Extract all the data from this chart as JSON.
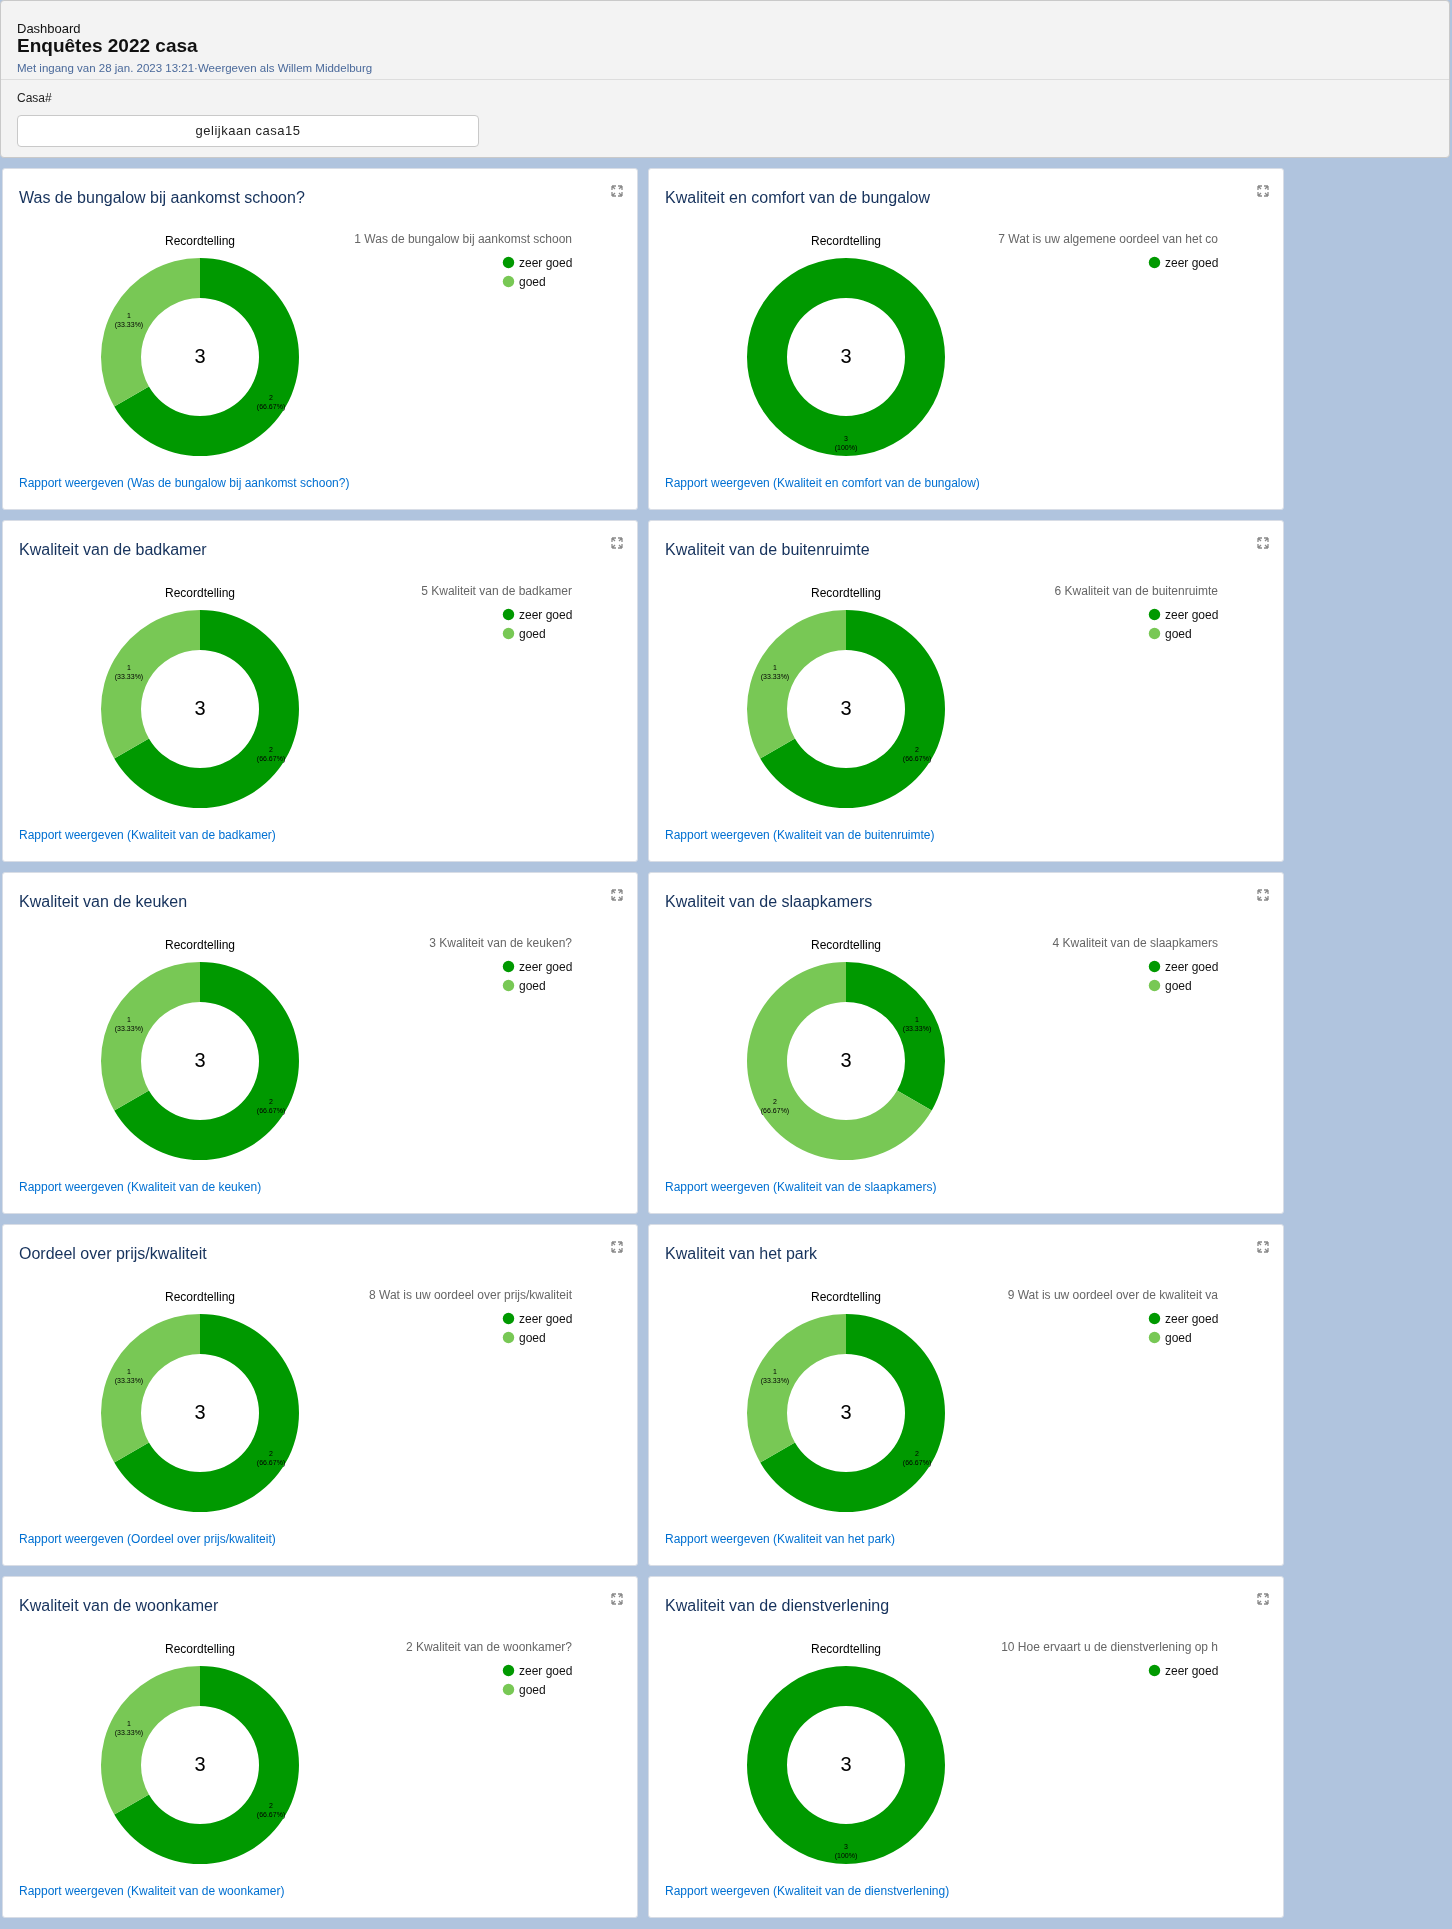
{
  "chart_data": [
    {
      "type": "other",
      "title": "Enquêtes 2022 casa",
      "subtitle": "Met ingang van 28 jan. 2023 13:21·Weergeven als Willem Middelburg",
      "annotations": [
        "Dashboard",
        "Casa#",
        "gelijkaan casa15"
      ]
    },
    {
      "type": "donut",
      "title": "Was de bungalow bij aankomst schoon?",
      "subtitle": "Recordtelling",
      "legend_title": "1 Was de bungalow bij aankomst schoon",
      "legend": "top right",
      "categories": [
        "zeer goed",
        "goed"
      ],
      "values": [
        2,
        1
      ],
      "colors": [
        "#009900",
        "#78c855"
      ],
      "value_labels": [
        "2\n(66.67%)",
        "1\n(33.33%)"
      ],
      "totals": [
        "3"
      ],
      "annotations": [
        "Rapport weergeven (Was de bungalow bij aankomst schoon?)"
      ]
    },
    {
      "type": "donut",
      "title": "Kwaliteit en comfort van de bungalow",
      "subtitle": "Recordtelling",
      "legend_title": "7 Wat is uw  algemene oordeel van het co",
      "legend": "top right",
      "categories": [
        "zeer goed"
      ],
      "values": [
        3
      ],
      "colors": [
        "#009900"
      ],
      "value_labels": [
        "3\n(100%)"
      ],
      "totals": [
        "3"
      ],
      "annotations": [
        "Rapport weergeven (Kwaliteit en comfort van de bungalow)"
      ]
    },
    {
      "type": "donut",
      "title": "Kwaliteit van de badkamer",
      "subtitle": "Recordtelling",
      "legend_title": "5 Kwaliteit van de badkamer",
      "legend": "top right",
      "categories": [
        "zeer goed",
        "goed"
      ],
      "values": [
        2,
        1
      ],
      "colors": [
        "#009900",
        "#78c855"
      ],
      "value_labels": [
        "2\n(66.67%)",
        "1\n(33.33%)"
      ],
      "totals": [
        "3"
      ],
      "annotations": [
        "Rapport weergeven (Kwaliteit van de badkamer)"
      ]
    },
    {
      "type": "donut",
      "title": "Kwaliteit van de buitenruimte",
      "subtitle": "Recordtelling",
      "legend_title": "6 Kwaliteit van de buitenruimte",
      "legend": "top right",
      "categories": [
        "zeer goed",
        "goed"
      ],
      "values": [
        2,
        1
      ],
      "colors": [
        "#009900",
        "#78c855"
      ],
      "value_labels": [
        "2\n(66.67%)",
        "1\n(33.33%)"
      ],
      "totals": [
        "3"
      ],
      "annotations": [
        "Rapport weergeven (Kwaliteit van de buitenruimte)"
      ]
    },
    {
      "type": "donut",
      "title": "Kwaliteit van de keuken",
      "subtitle": "Recordtelling",
      "legend_title": "3 Kwaliteit van de keuken?",
      "legend": "top right",
      "categories": [
        "zeer goed",
        "goed"
      ],
      "values": [
        2,
        1
      ],
      "colors": [
        "#009900",
        "#78c855"
      ],
      "value_labels": [
        "2\n(66.67%)",
        "1\n(33.33%)"
      ],
      "totals": [
        "3"
      ],
      "annotations": [
        "Rapport weergeven (Kwaliteit van de keuken)"
      ]
    },
    {
      "type": "donut",
      "title": "Kwaliteit van de slaapkamers",
      "subtitle": "Recordtelling",
      "legend_title": "4 Kwaliteit van de slaapkamers",
      "legend": "top right",
      "categories": [
        "zeer goed",
        "goed"
      ],
      "values": [
        1,
        2
      ],
      "colors": [
        "#009900",
        "#78c855"
      ],
      "value_labels": [
        "1\n(33.33%)",
        "2\n(66.67%)"
      ],
      "totals": [
        "3"
      ],
      "annotations": [
        "Rapport weergeven (Kwaliteit van de slaapkamers)"
      ]
    },
    {
      "type": "donut",
      "title": "Oordeel over prijs/kwaliteit",
      "subtitle": "Recordtelling",
      "legend_title": "8 Wat is uw oordeel over prijs/kwaliteit",
      "legend": "top right",
      "categories": [
        "zeer goed",
        "goed"
      ],
      "values": [
        2,
        1
      ],
      "colors": [
        "#009900",
        "#78c855"
      ],
      "value_labels": [
        "2\n(66.67%)",
        "1\n(33.33%)"
      ],
      "totals": [
        "3"
      ],
      "annotations": [
        "Rapport weergeven (Oordeel over prijs/kwaliteit)"
      ]
    },
    {
      "type": "donut",
      "title": "Kwaliteit van het park",
      "subtitle": "Recordtelling",
      "legend_title": "9 Wat is uw oordeel over de kwaliteit va",
      "legend": "top right",
      "categories": [
        "zeer goed",
        "goed"
      ],
      "values": [
        2,
        1
      ],
      "colors": [
        "#009900",
        "#78c855"
      ],
      "value_labels": [
        "2\n(66.67%)",
        "1\n(33.33%)"
      ],
      "totals": [
        "3"
      ],
      "annotations": [
        "Rapport weergeven (Kwaliteit van het park)"
      ]
    },
    {
      "type": "donut",
      "title": "Kwaliteit van de woonkamer",
      "subtitle": "Recordtelling",
      "legend_title": "2 Kwaliteit van de woonkamer?",
      "legend": "top right",
      "categories": [
        "zeer goed",
        "goed"
      ],
      "values": [
        2,
        1
      ],
      "colors": [
        "#009900",
        "#78c855"
      ],
      "value_labels": [
        "2\n(66.67%)",
        "1\n(33.33%)"
      ],
      "totals": [
        "3"
      ],
      "annotations": [
        "Rapport weergeven (Kwaliteit van de woonkamer)"
      ]
    },
    {
      "type": "donut",
      "title": "Kwaliteit van de dienstverlening",
      "subtitle": "Recordtelling",
      "legend_title": "10 Hoe ervaart u de dienstverlening op h",
      "legend": "top right",
      "categories": [
        "zeer goed"
      ],
      "values": [
        3
      ],
      "colors": [
        "#009900"
      ],
      "value_labels": [
        "3\n(100%)"
      ],
      "totals": [
        "3"
      ],
      "annotations": [
        "Rapport weergeven (Kwaliteit van de dienstverlening)"
      ]
    }
  ]
}
